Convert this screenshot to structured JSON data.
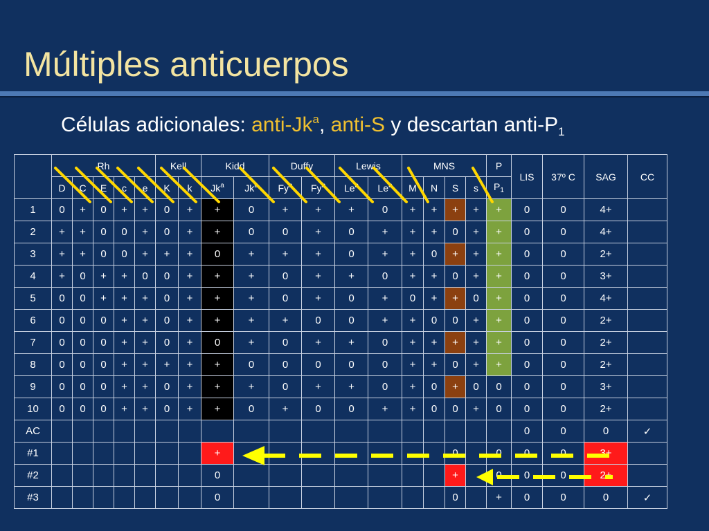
{
  "title": "Múltiples anticuerpos",
  "subtitle": {
    "prefix": "Células adicionales: ",
    "hl1_base": "anti-Jk",
    "hl1_sup": "a",
    "sep": ", ",
    "hl2": "anti-S",
    "mid": " y descartan anti-P",
    "sub": "1"
  },
  "table": {
    "groups": [
      "Rh",
      "Kell",
      "Kidd",
      "Duffy",
      "Lewis",
      "MNS",
      "P"
    ],
    "extra_headers": [
      "LIS",
      "37º C",
      "SAG",
      "CC"
    ],
    "antigens": [
      {
        "base": "D"
      },
      {
        "base": "C"
      },
      {
        "base": "E"
      },
      {
        "base": "c"
      },
      {
        "base": "e"
      },
      {
        "base": "K"
      },
      {
        "base": "k"
      },
      {
        "base": "Jk",
        "sup": "a"
      },
      {
        "base": "Jk",
        "sup": "b"
      },
      {
        "base": "Fy",
        "sup": "a"
      },
      {
        "base": "Fy",
        "sup": "b"
      },
      {
        "base": "Le",
        "sup": "a"
      },
      {
        "base": "Le",
        "sup": "b"
      },
      {
        "base": "M"
      },
      {
        "base": "N"
      },
      {
        "base": "S"
      },
      {
        "base": "s"
      },
      {
        "base": "P",
        "sub": "1"
      }
    ],
    "rows": [
      {
        "id": "1",
        "cells": [
          "0",
          "+",
          "0",
          "+",
          "+",
          "0",
          "+",
          "+",
          "0",
          "+",
          "+",
          "+",
          "0",
          "+",
          "+",
          "+",
          "+",
          "+",
          "0",
          "0",
          "4+",
          ""
        ]
      },
      {
        "id": "2",
        "cells": [
          "+",
          "+",
          "0",
          "0",
          "+",
          "0",
          "+",
          "+",
          "0",
          "0",
          "+",
          "0",
          "+",
          "+",
          "+",
          "0",
          "+",
          "+",
          "0",
          "0",
          "4+",
          ""
        ]
      },
      {
        "id": "3",
        "cells": [
          "+",
          "+",
          "0",
          "0",
          "+",
          "+",
          "+",
          "0",
          "+",
          "+",
          "+",
          "0",
          "+",
          "+",
          "0",
          "+",
          "+",
          "+",
          "0",
          "0",
          "2+",
          ""
        ]
      },
      {
        "id": "4",
        "cells": [
          "+",
          "0",
          "+",
          "+",
          "0",
          "0",
          "+",
          "+",
          "+",
          "0",
          "+",
          "+",
          "0",
          "+",
          "+",
          "0",
          "+",
          "+",
          "0",
          "0",
          "3+",
          ""
        ]
      },
      {
        "id": "5",
        "cells": [
          "0",
          "0",
          "+",
          "+",
          "+",
          "0",
          "+",
          "+",
          "+",
          "0",
          "+",
          "0",
          "+",
          "0",
          "+",
          "+",
          "0",
          "+",
          "0",
          "0",
          "4+",
          ""
        ]
      },
      {
        "id": "6",
        "cells": [
          "0",
          "0",
          "0",
          "+",
          "+",
          "0",
          "+",
          "+",
          "+",
          "+",
          "0",
          "0",
          "+",
          "+",
          "0",
          "0",
          "+",
          "+",
          "0",
          "0",
          "2+",
          ""
        ]
      },
      {
        "id": "7",
        "cells": [
          "0",
          "0",
          "0",
          "+",
          "+",
          "0",
          "+",
          "0",
          "+",
          "0",
          "+",
          "+",
          "0",
          "+",
          "+",
          "+",
          "+",
          "+",
          "0",
          "0",
          "2+",
          ""
        ]
      },
      {
        "id": "8",
        "cells": [
          "0",
          "0",
          "0",
          "+",
          "+",
          "+",
          "+",
          "+",
          "0",
          "0",
          "0",
          "0",
          "0",
          "+",
          "+",
          "0",
          "+",
          "+",
          "0",
          "0",
          "2+",
          ""
        ]
      },
      {
        "id": "9",
        "cells": [
          "0",
          "0",
          "0",
          "+",
          "+",
          "0",
          "+",
          "+",
          "+",
          "0",
          "+",
          "+",
          "0",
          "+",
          "0",
          "+",
          "0",
          "0",
          "0",
          "0",
          "3+",
          ""
        ]
      },
      {
        "id": "10",
        "cells": [
          "0",
          "0",
          "0",
          "+",
          "+",
          "0",
          "+",
          "+",
          "0",
          "+",
          "0",
          "0",
          "+",
          "+",
          "0",
          "0",
          "+",
          "0",
          "0",
          "0",
          "2+",
          ""
        ]
      },
      {
        "id": "AC",
        "cells": [
          "",
          "",
          "",
          "",
          "",
          "",
          "",
          "",
          "",
          "",
          "",
          "",
          "",
          "",
          "",
          "",
          "",
          "",
          "0",
          "0",
          "0",
          "✓"
        ]
      },
      {
        "id": "#1",
        "cells": [
          "",
          "",
          "",
          "",
          "",
          "",
          "",
          "+",
          "",
          "",
          "",
          "",
          "",
          "",
          "",
          "0",
          "",
          "0",
          "0",
          "0",
          "3+",
          ""
        ]
      },
      {
        "id": "#2",
        "cells": [
          "",
          "",
          "",
          "",
          "",
          "",
          "",
          "0",
          "",
          "",
          "",
          "",
          "",
          "",
          "",
          "+",
          "",
          "0",
          "0",
          "0",
          "2+",
          ""
        ]
      },
      {
        "id": "#3",
        "cells": [
          "",
          "",
          "",
          "",
          "",
          "",
          "",
          "0",
          "",
          "",
          "",
          "",
          "",
          "",
          "",
          "0",
          "",
          "+",
          "0",
          "0",
          "0",
          "✓"
        ]
      }
    ]
  },
  "colors": {
    "background": "#10305f",
    "title": "#f3e4a1",
    "highlight": "#f0c030",
    "black_column": "#000000",
    "brown_column": "#8b4010",
    "green_column": "#7da23e",
    "red_cell": "#ff1a1a",
    "strike_line": "#ffd700",
    "arrow": "#ffff00"
  }
}
